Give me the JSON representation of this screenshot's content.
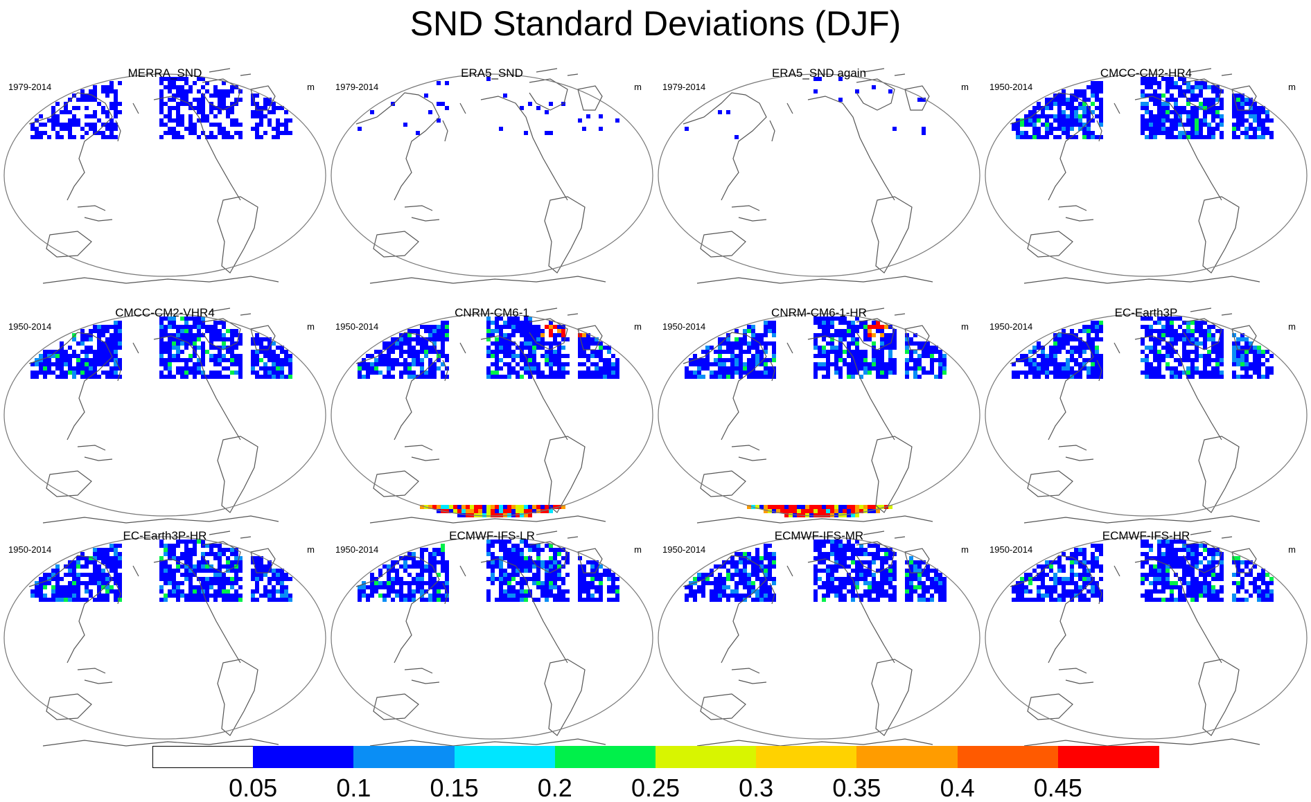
{
  "title": "SND Standard Deviations (DJF)",
  "panels": [
    {
      "title": "MERRA_SND",
      "period": "1979-2014",
      "unit": "m",
      "level": 2,
      "south": 0
    },
    {
      "title": "ERA5_SND",
      "period": "1979-2014",
      "unit": "m",
      "level": 0,
      "south": 0
    },
    {
      "title": "ERA5_SND again",
      "period": "1979-2014",
      "unit": "m",
      "level": 0,
      "south": 0
    },
    {
      "title": "CMCC-CM2-HR4",
      "period": "1950-2014",
      "unit": "m",
      "level": 3,
      "south": 1
    },
    {
      "title": "CMCC-CM2-VHR4",
      "period": "1950-2014",
      "unit": "m",
      "level": 3,
      "south": 1
    },
    {
      "title": "CNRM-CM6-1",
      "period": "1950-2014",
      "unit": "m",
      "level": 4,
      "south": 3
    },
    {
      "title": "CNRM-CM6-1-HR",
      "period": "1950-2014",
      "unit": "m",
      "level": 4,
      "south": 3
    },
    {
      "title": "EC-Earth3P",
      "period": "1950-2014",
      "unit": "m",
      "level": 3,
      "south": 1
    },
    {
      "title": "EC-Earth3P-HR",
      "period": "1950-2014",
      "unit": "m",
      "level": 3,
      "south": 1
    },
    {
      "title": "ECMWF-IFS-LR",
      "period": "1950-2014",
      "unit": "m",
      "level": 3,
      "south": 0
    },
    {
      "title": "ECMWF-IFS-MR",
      "period": "1950-2014",
      "unit": "m",
      "level": 3,
      "south": 0
    },
    {
      "title": "ECMWF-IFS-HR",
      "period": "1950-2014",
      "unit": "m",
      "level": 3,
      "south": 0
    }
  ],
  "colorbar": {
    "labels": [
      "0.05",
      "0.1",
      "0.15",
      "0.2",
      "0.25",
      "0.3",
      "0.35",
      "0.4",
      "0.45"
    ],
    "colors": [
      "#ffffff",
      "#0000ff",
      "#0a8ef5",
      "#00e6ff",
      "#00f04a",
      "#d8f500",
      "#ffd200",
      "#ff9c00",
      "#ff5a00",
      "#ff0000"
    ]
  },
  "land_color": "#555555"
}
